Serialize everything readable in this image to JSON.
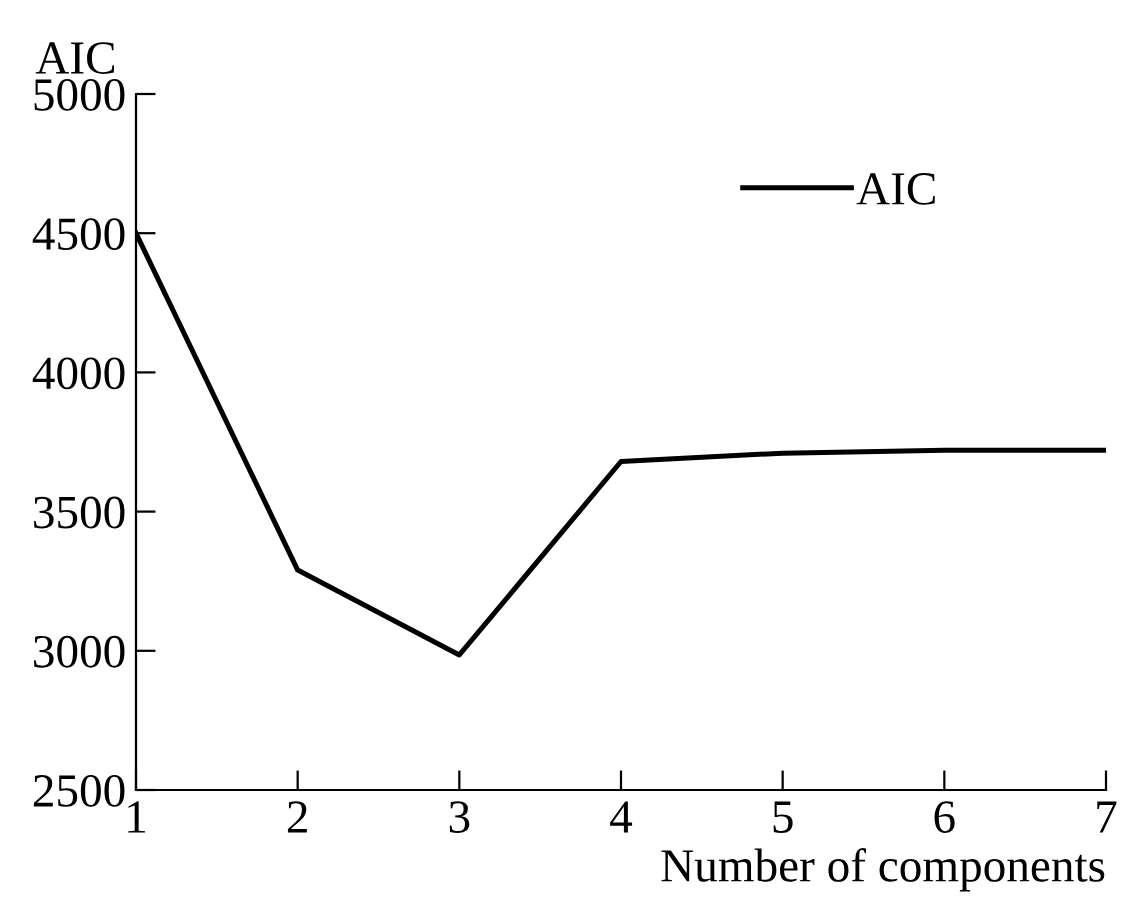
{
  "chart_data": {
    "type": "line",
    "ylabel": "AIC",
    "xlabel": "Number of components",
    "x": [
      1,
      2,
      3,
      4,
      5,
      6,
      7
    ],
    "series": [
      {
        "name": "AIC",
        "color": "#000000",
        "values": [
          4500,
          3290,
          2985,
          3680,
          3710,
          3720,
          3720
        ]
      }
    ],
    "xlim": [
      1,
      7
    ],
    "xticks": [
      1,
      2,
      3,
      4,
      5,
      6,
      7
    ],
    "ylim": [
      2500,
      5000
    ],
    "yticks": [
      2500,
      3000,
      3500,
      4000,
      4500,
      5000
    ],
    "grid": false,
    "legend": "top right",
    "line_style": "solid",
    "marker": "none"
  }
}
